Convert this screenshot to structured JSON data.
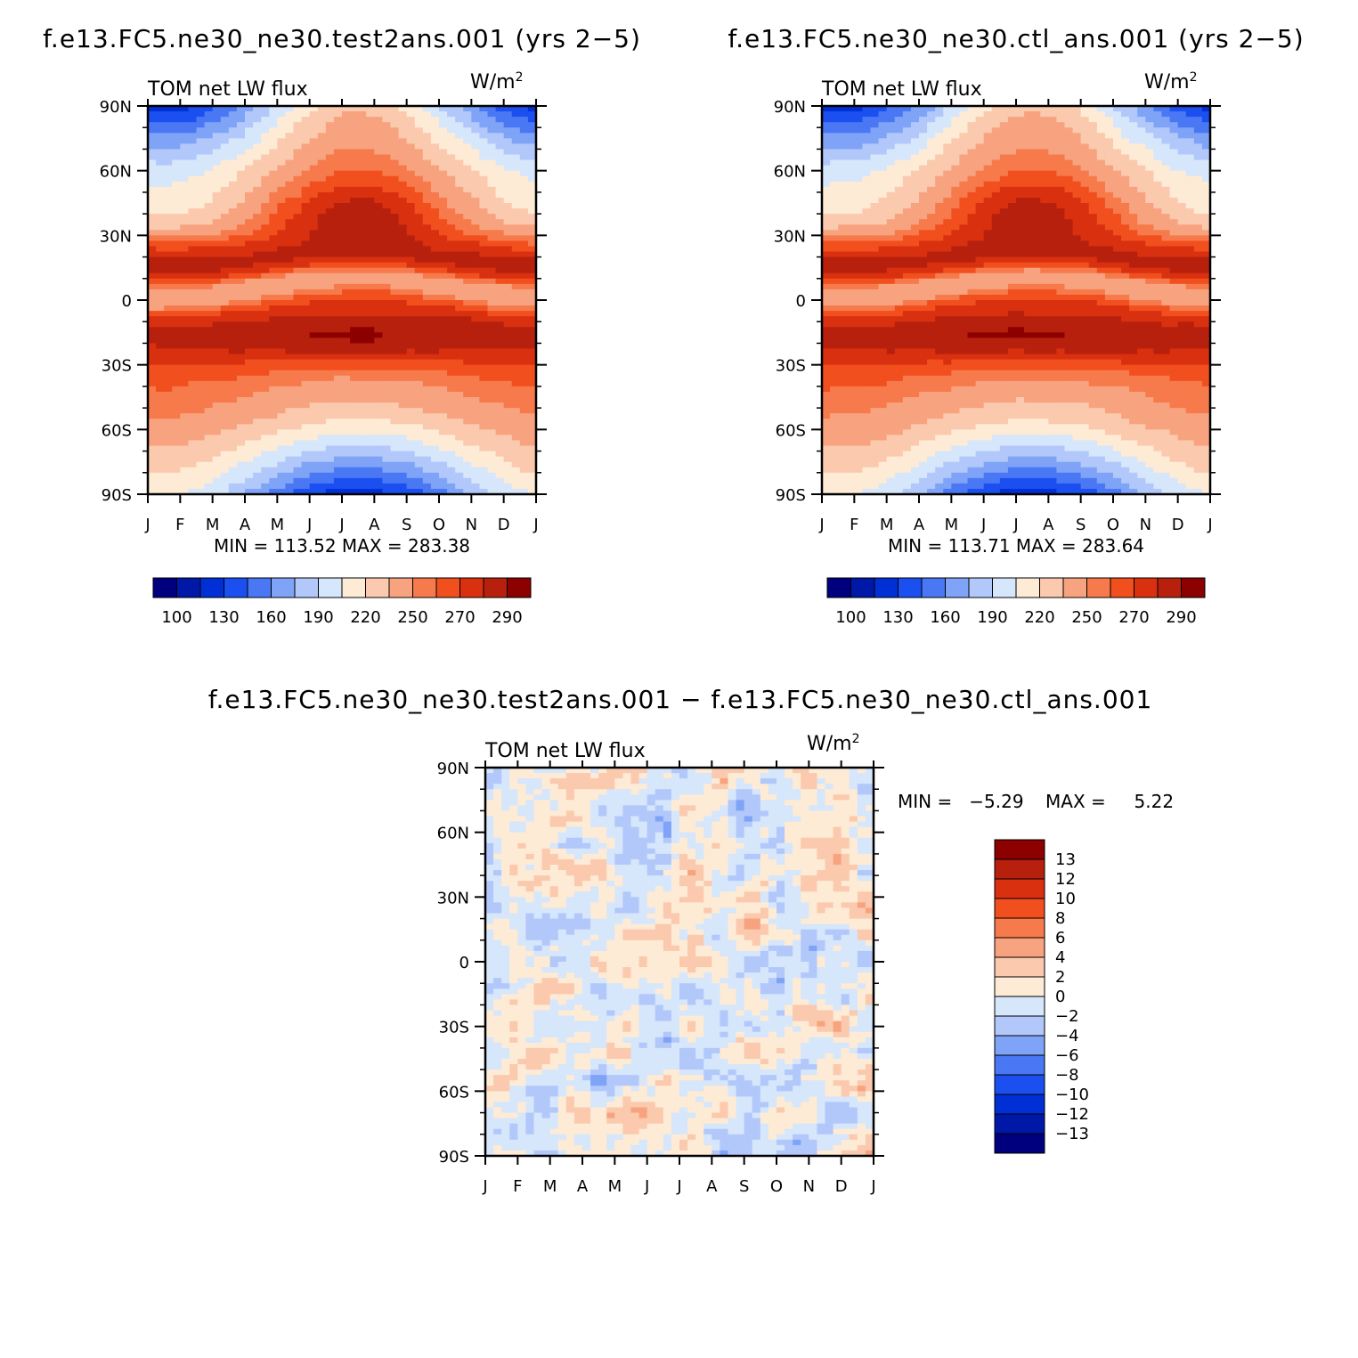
{
  "chart_data": [
    {
      "type": "heatmap",
      "id": "test",
      "title": "f.e13.FC5.ne30_ne30.test2ans.001 (yrs 2-5)",
      "left_label": "TOM net LW flux",
      "units": "W/m",
      "units_sup": "2",
      "x_ticks": [
        "J",
        "F",
        "M",
        "A",
        "M",
        "J",
        "J",
        "A",
        "S",
        "O",
        "N",
        "D",
        "J"
      ],
      "y_ticks": [
        "90N",
        "60N",
        "30N",
        "0",
        "30S",
        "60S",
        "90S"
      ],
      "ylim": [
        -90,
        90
      ],
      "min_text": "MIN = 113.52",
      "max_text": "MAX = 283.38",
      "min": 113.52,
      "max": 283.38,
      "levels_labels": [
        "100",
        "130",
        "160",
        "190",
        "220",
        "250",
        "270",
        "290"
      ],
      "field_kind": "abs",
      "offset": 0
    },
    {
      "type": "heatmap",
      "id": "ctl",
      "title": "f.e13.FC5.ne30_ne30.ctl_ans.001 (yrs 2-5)",
      "left_label": "TOM net LW flux",
      "units": "W/m",
      "units_sup": "2",
      "x_ticks": [
        "J",
        "F",
        "M",
        "A",
        "M",
        "J",
        "J",
        "A",
        "S",
        "O",
        "N",
        "D",
        "J"
      ],
      "y_ticks": [
        "90N",
        "60N",
        "30N",
        "0",
        "30S",
        "60S",
        "90S"
      ],
      "ylim": [
        -90,
        90
      ],
      "min_text": "MIN = 113.71",
      "max_text": "MAX = 283.64",
      "min": 113.71,
      "max": 283.64,
      "levels_labels": [
        "100",
        "130",
        "160",
        "190",
        "220",
        "250",
        "270",
        "290"
      ],
      "field_kind": "abs",
      "offset": 0.2
    },
    {
      "type": "heatmap",
      "id": "diff",
      "title": "f.e13.FC5.ne30_ne30.test2ans.001 - f.e13.FC5.ne30_ne30.ctl_ans.001",
      "left_label": "TOM net LW flux",
      "units": "W/m",
      "units_sup": "2",
      "x_ticks": [
        "J",
        "F",
        "M",
        "A",
        "M",
        "J",
        "J",
        "A",
        "S",
        "O",
        "N",
        "D",
        "J"
      ],
      "y_ticks": [
        "90N",
        "60N",
        "30N",
        "0",
        "30S",
        "60S",
        "90S"
      ],
      "ylim": [
        -90,
        90
      ],
      "min_text": "MIN =   -5.29",
      "max_text": "MAX =     5.22",
      "min": -5.29,
      "max": 5.22,
      "levels_labels": [
        "13",
        "12",
        "10",
        "8",
        "6",
        "4",
        "2",
        "0",
        "-2",
        "-4",
        "-6",
        "-8",
        "-10",
        "-12",
        "-13"
      ],
      "field_kind": "diff"
    }
  ],
  "palette": [
    "#00007f",
    "#0018a8",
    "#0030d5",
    "#1b4fef",
    "#4a78f4",
    "#7fa3f6",
    "#b2c8fa",
    "#d6e6fb",
    "#fdebd6",
    "#fbc9ad",
    "#f8a37f",
    "#f67a4b",
    "#f24f1f",
    "#d93010",
    "#b8200e",
    "#8c0000"
  ],
  "abs_levels": [
    100,
    115,
    130,
    145,
    160,
    175,
    190,
    205,
    220,
    235,
    250,
    260,
    270,
    280,
    290
  ],
  "diff_levels": [
    -13,
    -12,
    -10,
    -8,
    -6,
    -4,
    -2,
    0,
    2,
    4,
    6,
    8,
    10,
    12,
    13
  ]
}
